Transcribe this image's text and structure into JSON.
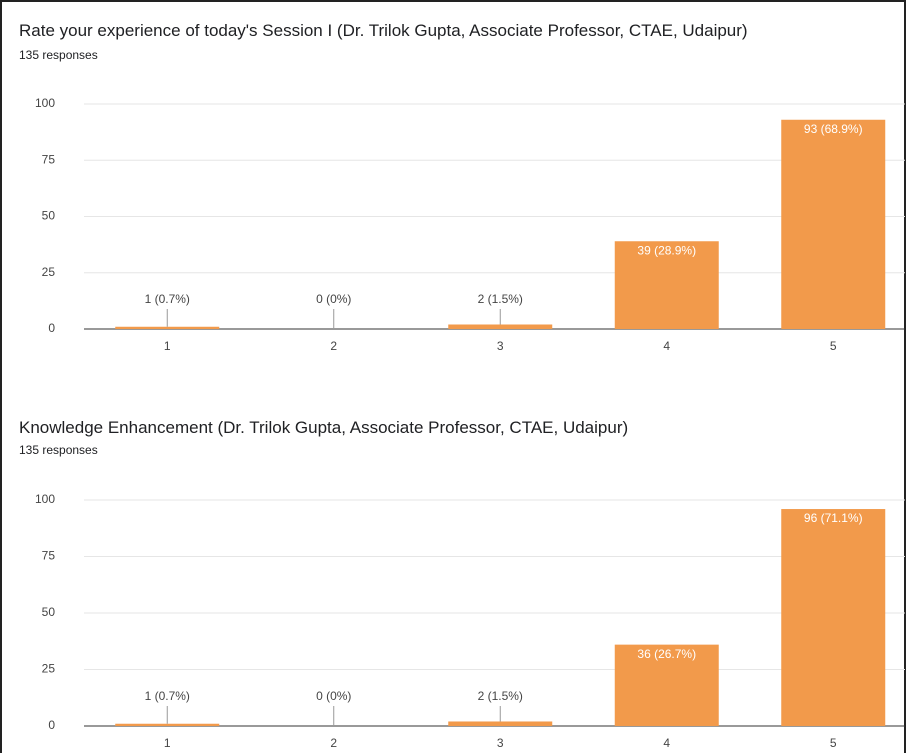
{
  "chart_data": [
    {
      "type": "bar",
      "title": "Rate your experience of today's Session I (Dr. Trilok Gupta, Associate Professor, CTAE, Udaipur)",
      "subtitle": "135 responses",
      "categories": [
        "1",
        "2",
        "3",
        "4",
        "5"
      ],
      "values": [
        1,
        0,
        2,
        39,
        93
      ],
      "value_labels": [
        "1 (0.7%)",
        "0 (0%)",
        "2 (1.5%)",
        "39 (28.9%)",
        "93 (68.9%)"
      ],
      "color": "#f29a4b",
      "ylim": [
        0,
        100
      ],
      "yticks": [
        0,
        25,
        50,
        75,
        100
      ],
      "grid": true
    },
    {
      "type": "bar",
      "title": "Knowledge Enhancement (Dr. Trilok Gupta, Associate Professor, CTAE, Udaipur)",
      "subtitle": "135 responses",
      "categories": [
        "1",
        "2",
        "3",
        "4",
        "5"
      ],
      "values": [
        1,
        0,
        2,
        36,
        96
      ],
      "value_labels": [
        "1 (0.7%)",
        "0 (0%)",
        "2 (1.5%)",
        "36 (26.7%)",
        "96 (71.1%)"
      ],
      "color": "#f29a4b",
      "ylim": [
        0,
        100
      ],
      "yticks": [
        0,
        25,
        50,
        75,
        100
      ],
      "grid": true
    }
  ]
}
